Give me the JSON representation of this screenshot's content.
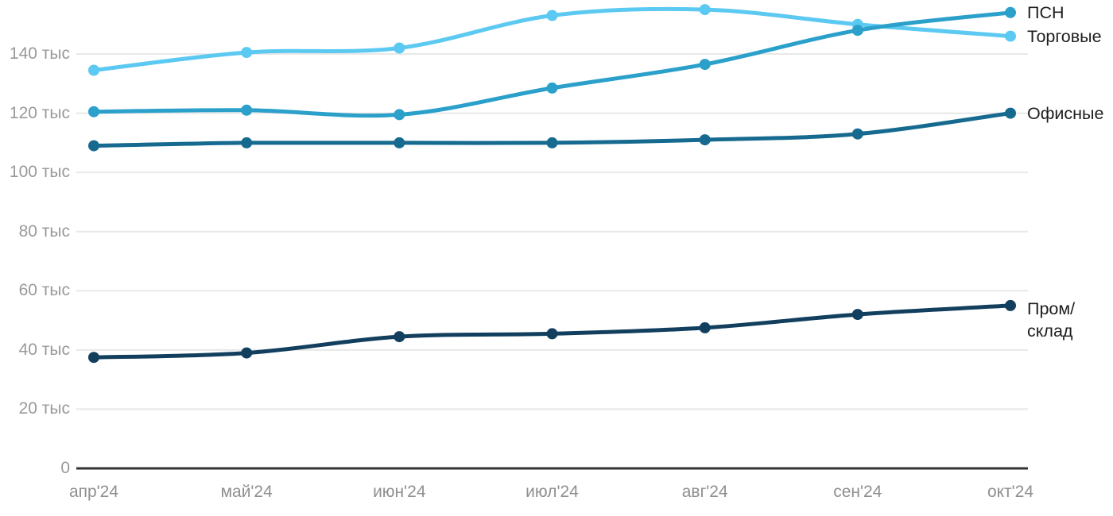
{
  "chart_data": {
    "type": "line",
    "title": "",
    "xlabel": "",
    "ylabel": "",
    "unit": "тыс",
    "categories": [
      "апр'24",
      "май'24",
      "июн'24",
      "июл'24",
      "авг'24",
      "сен'24",
      "окт'24"
    ],
    "yticks": [
      0,
      20,
      40,
      60,
      80,
      100,
      120,
      140
    ],
    "ytick_labels": [
      "0",
      "20 тыс",
      "40 тыс",
      "60 тыс",
      "80 тыс",
      "100 тыс",
      "120 тыс",
      "140 тыс"
    ],
    "ylim": [
      0,
      158
    ],
    "grid": "horizontal",
    "legend_position": "right-end-of-line",
    "line_style": "smooth",
    "series": [
      {
        "name": "Торговые",
        "label": "Торговые",
        "color": "#5BC9F2",
        "values": [
          134.5,
          140.5,
          142,
          153,
          155,
          150,
          146
        ]
      },
      {
        "name": "ПСН",
        "label": "ПСН",
        "color": "#2AA0CA",
        "values": [
          120.5,
          121,
          119.5,
          128.5,
          136.5,
          148,
          154
        ]
      },
      {
        "name": "Офисные",
        "label": "Офисные",
        "color": "#166A90",
        "values": [
          109,
          110,
          110,
          110,
          111,
          113,
          120
        ]
      },
      {
        "name": "Пром/склад",
        "label": "Пром/\nсклад",
        "color": "#123F5E",
        "values": [
          37.5,
          39,
          44.5,
          45.5,
          47.5,
          52,
          55
        ]
      }
    ],
    "colors": {
      "gridline": "#E8E8E8",
      "axis_line": "#333333",
      "ytick_text": "#999999",
      "xtick_text": "#8F8F8F",
      "series_label_text": "#1E1E1E",
      "background": "#FFFFFF"
    }
  }
}
